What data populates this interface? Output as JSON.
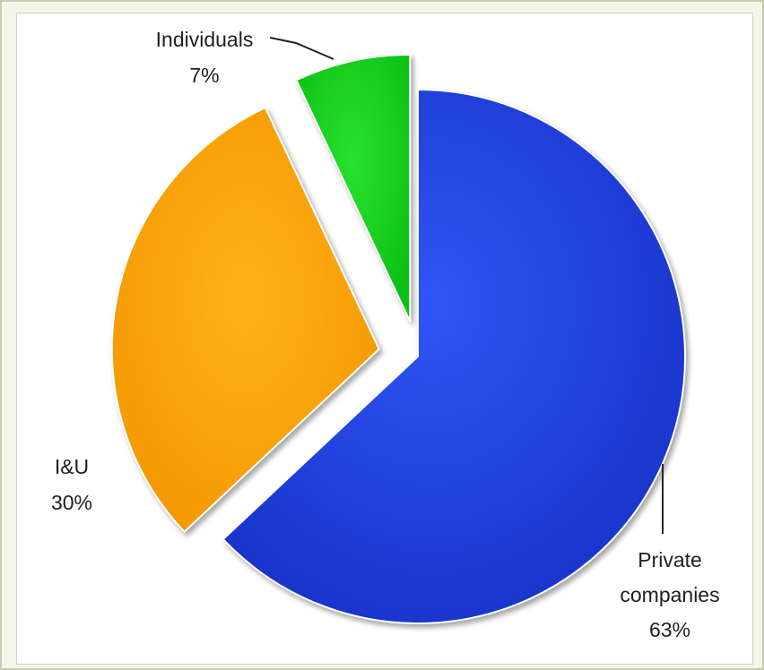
{
  "chart_data": {
    "type": "pie",
    "exploded": true,
    "slices": [
      {
        "label_line1": "Private",
        "label_line2": "companies",
        "value": 63,
        "value_label": "63%",
        "color": "#1c3ee0"
      },
      {
        "label_line1": "I&U",
        "label_line2": "",
        "value": 30,
        "value_label": "30%",
        "color": "#ffa200"
      },
      {
        "label_line1": "Individuals",
        "label_line2": "",
        "value": 7,
        "value_label": "7%",
        "color": "#12d11a"
      }
    ]
  }
}
